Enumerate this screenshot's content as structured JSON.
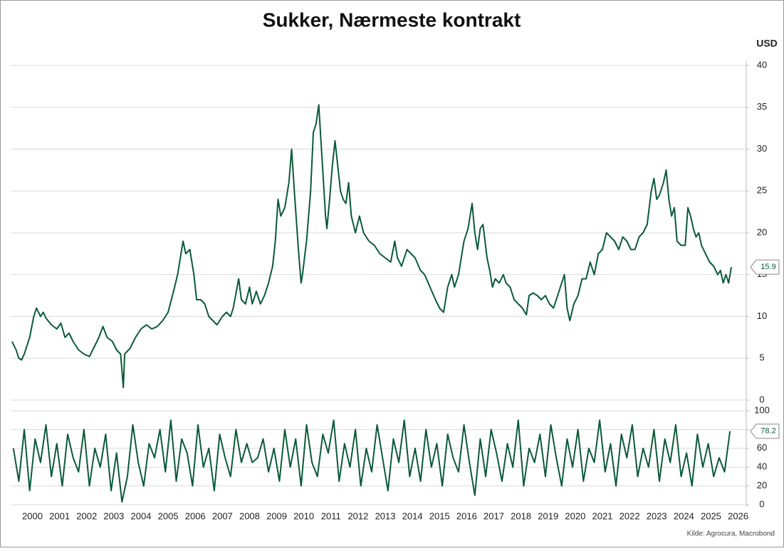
{
  "chart_data": [
    {
      "type": "line",
      "title": "Sukker, Nærmeste kontrakt",
      "y_label": "USD",
      "color": "#0b5a3a",
      "grid": true,
      "end_label": true,
      "xlim": [
        1999.7,
        2026.8
      ],
      "ylim": [
        0,
        40
      ],
      "yticks": [
        0,
        5,
        10,
        15,
        20,
        25,
        30,
        35,
        40
      ],
      "x": [
        1999.75,
        1999.9,
        2000.0,
        2000.1,
        2000.2,
        2000.4,
        2000.55,
        2000.65,
        2000.8,
        2000.9,
        2001.0,
        2001.2,
        2001.4,
        2001.55,
        2001.7,
        2001.85,
        2002.0,
        2002.2,
        2002.4,
        2002.6,
        2002.8,
        2002.95,
        2003.1,
        2003.25,
        2003.45,
        2003.6,
        2003.75,
        2003.85,
        2003.9,
        2004.1,
        2004.3,
        2004.5,
        2004.7,
        2004.9,
        2005.1,
        2005.3,
        2005.5,
        2005.7,
        2005.85,
        2006.05,
        2006.15,
        2006.3,
        2006.45,
        2006.55,
        2006.7,
        2006.85,
        2007.0,
        2007.15,
        2007.3,
        2007.5,
        2007.65,
        2007.8,
        2007.9,
        2008.1,
        2008.2,
        2008.35,
        2008.5,
        2008.6,
        2008.75,
        2008.9,
        2009.05,
        2009.2,
        2009.35,
        2009.45,
        2009.55,
        2009.65,
        2009.8,
        2009.95,
        2010.05,
        2010.15,
        2010.3,
        2010.4,
        2010.45,
        2010.6,
        2010.75,
        2010.85,
        2010.95,
        2011.05,
        2011.15,
        2011.3,
        2011.35,
        2011.45,
        2011.55,
        2011.65,
        2011.75,
        2011.85,
        2011.95,
        2012.05,
        2012.15,
        2012.25,
        2012.4,
        2012.55,
        2012.7,
        2012.9,
        2013.1,
        2013.3,
        2013.5,
        2013.7,
        2013.85,
        2013.95,
        2014.1,
        2014.3,
        2014.45,
        2014.6,
        2014.8,
        2014.95,
        2015.15,
        2015.35,
        2015.5,
        2015.65,
        2015.8,
        2015.95,
        2016.05,
        2016.2,
        2016.4,
        2016.55,
        2016.7,
        2016.8,
        2016.9,
        2017.0,
        2017.1,
        2017.25,
        2017.35,
        2017.45,
        2017.55,
        2017.7,
        2017.85,
        2017.95,
        2018.1,
        2018.25,
        2018.4,
        2018.55,
        2018.7,
        2018.8,
        2018.95,
        2019.1,
        2019.25,
        2019.4,
        2019.55,
        2019.7,
        2019.85,
        2020.0,
        2020.1,
        2020.2,
        2020.3,
        2020.45,
        2020.6,
        2020.75,
        2020.9,
        2021.05,
        2021.2,
        2021.35,
        2021.5,
        2021.65,
        2021.8,
        2021.95,
        2022.1,
        2022.25,
        2022.4,
        2022.55,
        2022.7,
        2022.85,
        2023.0,
        2023.15,
        2023.3,
        2023.4,
        2023.5,
        2023.6,
        2023.75,
        2023.85,
        2023.95,
        2024.05,
        2024.15,
        2024.25,
        2024.4,
        2024.55,
        2024.65,
        2024.75,
        2024.85,
        2024.95,
        2025.05,
        2025.15,
        2025.3,
        2025.45,
        2025.6,
        2025.75,
        2025.85,
        2025.95,
        2026.05,
        2026.15,
        2026.25
      ],
      "values": [
        7.0,
        6.0,
        5.0,
        4.8,
        5.5,
        7.5,
        10.0,
        11.0,
        10.0,
        10.5,
        9.8,
        9.0,
        8.5,
        9.2,
        7.5,
        8.0,
        7.0,
        6.0,
        5.5,
        5.2,
        6.5,
        7.5,
        8.8,
        7.5,
        7.0,
        6.0,
        5.5,
        1.5,
        5.5,
        6.2,
        7.5,
        8.5,
        9.0,
        8.5,
        8.8,
        9.5,
        10.5,
        13.0,
        15.0,
        19.0,
        17.5,
        18.0,
        15.0,
        12.0,
        12.0,
        11.5,
        10.0,
        9.5,
        9.0,
        10.0,
        10.5,
        10.0,
        11.0,
        14.5,
        12.0,
        11.5,
        13.5,
        11.5,
        13.0,
        11.5,
        12.5,
        14.0,
        16.0,
        19.0,
        24.0,
        22.0,
        23.0,
        26.0,
        30.0,
        25.0,
        18.0,
        14.0,
        15.0,
        19.0,
        25.0,
        32.0,
        33.0,
        35.3,
        30.0,
        22.0,
        20.5,
        24.0,
        28.0,
        31.0,
        28.0,
        25.0,
        24.0,
        23.5,
        26.0,
        22.0,
        20.0,
        22.0,
        20.0,
        19.0,
        18.5,
        17.5,
        17.0,
        16.5,
        19.0,
        17.0,
        16.0,
        18.0,
        17.5,
        17.0,
        15.5,
        15.0,
        13.5,
        12.0,
        11.0,
        10.5,
        13.5,
        15.0,
        13.5,
        15.0,
        19.0,
        20.5,
        23.5,
        20.0,
        18.0,
        20.5,
        21.0,
        17.0,
        15.5,
        13.5,
        14.5,
        14.0,
        15.0,
        14.0,
        13.5,
        12.0,
        11.5,
        11.0,
        10.2,
        12.5,
        12.8,
        12.5,
        12.0,
        12.5,
        11.5,
        11.0,
        12.5,
        14.0,
        15.0,
        11.0,
        9.5,
        11.5,
        12.5,
        14.5,
        14.5,
        16.5,
        15.0,
        17.5,
        18.0,
        20.0,
        19.5,
        19.0,
        18.0,
        19.5,
        19.0,
        18.0,
        18.0,
        19.5,
        20.0,
        21.0,
        25.0,
        26.5,
        24.0,
        24.5,
        26.0,
        27.5,
        24.0,
        22.0,
        23.0,
        19.0,
        18.5,
        18.5,
        23.0,
        22.0,
        20.5,
        19.5,
        20.0,
        18.5,
        17.5,
        16.5,
        16.0,
        15.0,
        15.5,
        14.0,
        15.0,
        14.0,
        15.9
      ]
    },
    {
      "type": "line",
      "color": "#0b5a3a",
      "grid": true,
      "end_label": true,
      "xlim": [
        1999.7,
        2026.8
      ],
      "ylim": [
        0,
        100
      ],
      "yticks": [
        0,
        20,
        40,
        60,
        80,
        100
      ],
      "xticks": [
        {
          "value": 2000.5,
          "label": "2000"
        },
        {
          "value": 2001.5,
          "label": "2001"
        },
        {
          "value": 2002.5,
          "label": "2002"
        },
        {
          "value": 2003.5,
          "label": "2003"
        },
        {
          "value": 2004.5,
          "label": "2004"
        },
        {
          "value": 2005.5,
          "label": "2005"
        },
        {
          "value": 2006.5,
          "label": "2006"
        },
        {
          "value": 2007.5,
          "label": "2007"
        },
        {
          "value": 2008.5,
          "label": "2008"
        },
        {
          "value": 2009.5,
          "label": "2009"
        },
        {
          "value": 2010.5,
          "label": "2010"
        },
        {
          "value": 2011.5,
          "label": "2011"
        },
        {
          "value": 2012.5,
          "label": "2012"
        },
        {
          "value": 2013.5,
          "label": "2013"
        },
        {
          "value": 2014.5,
          "label": "2014"
        },
        {
          "value": 2015.5,
          "label": "2015"
        },
        {
          "value": 2016.5,
          "label": "2016"
        },
        {
          "value": 2017.5,
          "label": "2017"
        },
        {
          "value": 2018.5,
          "label": "2018"
        },
        {
          "value": 2019.5,
          "label": "2019"
        },
        {
          "value": 2020.5,
          "label": "2020"
        },
        {
          "value": 2021.5,
          "label": "2021"
        },
        {
          "value": 2022.5,
          "label": "2022"
        },
        {
          "value": 2023.5,
          "label": "2023"
        },
        {
          "value": 2024.5,
          "label": "2024"
        },
        {
          "value": 2025.5,
          "label": "2025"
        },
        {
          "value": 2026.5,
          "label": "2026"
        }
      ],
      "x": [
        1999.8,
        2000,
        2000.2,
        2000.4,
        2000.6,
        2000.8,
        2001,
        2001.2,
        2001.4,
        2001.6,
        2001.8,
        2002,
        2002.2,
        2002.4,
        2002.6,
        2002.8,
        2003,
        2003.2,
        2003.4,
        2003.6,
        2003.8,
        2004,
        2004.2,
        2004.4,
        2004.6,
        2004.8,
        2005,
        2005.2,
        2005.4,
        2005.6,
        2005.8,
        2006,
        2006.2,
        2006.4,
        2006.6,
        2006.8,
        2007,
        2007.2,
        2007.4,
        2007.6,
        2007.8,
        2008,
        2008.2,
        2008.4,
        2008.6,
        2008.8,
        2009,
        2009.2,
        2009.4,
        2009.6,
        2009.8,
        2010,
        2010.2,
        2010.4,
        2010.6,
        2010.8,
        2011,
        2011.2,
        2011.4,
        2011.6,
        2011.8,
        2012,
        2012.2,
        2012.4,
        2012.6,
        2012.8,
        2013,
        2013.2,
        2013.4,
        2013.6,
        2013.8,
        2014,
        2014.2,
        2014.4,
        2014.6,
        2014.8,
        2015,
        2015.2,
        2015.4,
        2015.6,
        2015.8,
        2016,
        2016.2,
        2016.4,
        2016.6,
        2016.8,
        2017,
        2017.2,
        2017.4,
        2017.6,
        2017.8,
        2018,
        2018.2,
        2018.4,
        2018.6,
        2018.8,
        2019,
        2019.2,
        2019.4,
        2019.6,
        2019.8,
        2020,
        2020.2,
        2020.4,
        2020.6,
        2020.8,
        2021,
        2021.2,
        2021.4,
        2021.6,
        2021.8,
        2022,
        2022.2,
        2022.4,
        2022.6,
        2022.8,
        2023,
        2023.2,
        2023.4,
        2023.6,
        2023.8,
        2024,
        2024.2,
        2024.4,
        2024.6,
        2024.8,
        2025,
        2025.2,
        2025.4,
        2025.6,
        2025.8,
        2026,
        2026.2
      ],
      "values": [
        60,
        25,
        80,
        15,
        70,
        45,
        85,
        30,
        65,
        20,
        75,
        50,
        35,
        80,
        20,
        60,
        40,
        75,
        15,
        55,
        3,
        30,
        85,
        45,
        20,
        65,
        50,
        80,
        35,
        90,
        25,
        70,
        55,
        20,
        85,
        40,
        60,
        15,
        75,
        50,
        30,
        80,
        45,
        65,
        45,
        50,
        70,
        35,
        60,
        25,
        80,
        40,
        70,
        20,
        85,
        45,
        30,
        75,
        55,
        90,
        25,
        65,
        40,
        80,
        20,
        60,
        35,
        85,
        50,
        15,
        70,
        45,
        90,
        30,
        60,
        25,
        80,
        40,
        65,
        20,
        75,
        50,
        35,
        85,
        45,
        10,
        70,
        30,
        80,
        55,
        25,
        65,
        40,
        90,
        20,
        60,
        45,
        75,
        30,
        85,
        50,
        20,
        70,
        40,
        80,
        25,
        60,
        45,
        90,
        35,
        65,
        20,
        75,
        50,
        85,
        30,
        60,
        40,
        80,
        25,
        70,
        45,
        85,
        30,
        55,
        20,
        75,
        40,
        65,
        30,
        50,
        35,
        78.2
      ]
    }
  ],
  "source": "Kilde: Agrocura, Macrobond"
}
